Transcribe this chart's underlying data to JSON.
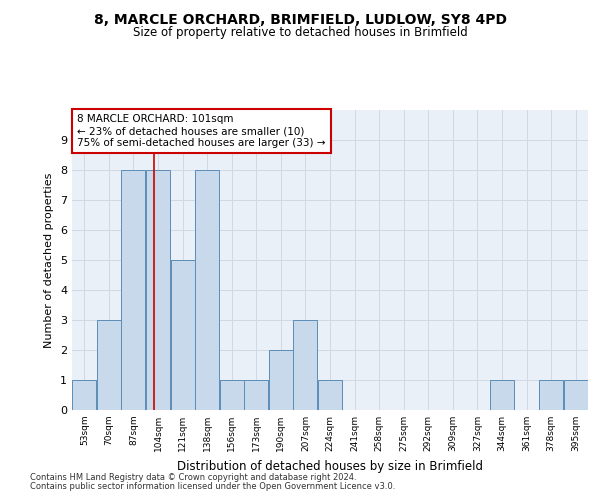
{
  "title": "8, MARCLE ORCHARD, BRIMFIELD, LUDLOW, SY8 4PD",
  "subtitle": "Size of property relative to detached houses in Brimfield",
  "xlabel": "Distribution of detached houses by size in Brimfield",
  "ylabel": "Number of detached properties",
  "bin_labels": [
    "53sqm",
    "70sqm",
    "87sqm",
    "104sqm",
    "121sqm",
    "138sqm",
    "156sqm",
    "173sqm",
    "190sqm",
    "207sqm",
    "224sqm",
    "241sqm",
    "258sqm",
    "275sqm",
    "292sqm",
    "309sqm",
    "327sqm",
    "344sqm",
    "361sqm",
    "378sqm",
    "395sqm"
  ],
  "bar_heights": [
    1,
    3,
    8,
    8,
    5,
    8,
    1,
    1,
    2,
    3,
    1,
    0,
    0,
    0,
    0,
    0,
    0,
    1,
    0,
    1,
    1
  ],
  "bar_color": "#c9d9ec",
  "bar_edge_color": "#5b8db8",
  "grid_color": "#d0d8e4",
  "annotation_text": "8 MARCLE ORCHARD: 101sqm\n← 23% of detached houses are smaller (10)\n75% of semi-detached houses are larger (33) →",
  "annotation_box_color": "#ffffff",
  "annotation_box_edge": "#cc0000",
  "marker_line_color": "#cc0000",
  "footer_line1": "Contains HM Land Registry data © Crown copyright and database right 2024.",
  "footer_line2": "Contains public sector information licensed under the Open Government Licence v3.0.",
  "ylim": [
    0,
    10
  ],
  "yticks": [
    0,
    1,
    2,
    3,
    4,
    5,
    6,
    7,
    8,
    9,
    10
  ],
  "bg_color": "#eaf0f8"
}
